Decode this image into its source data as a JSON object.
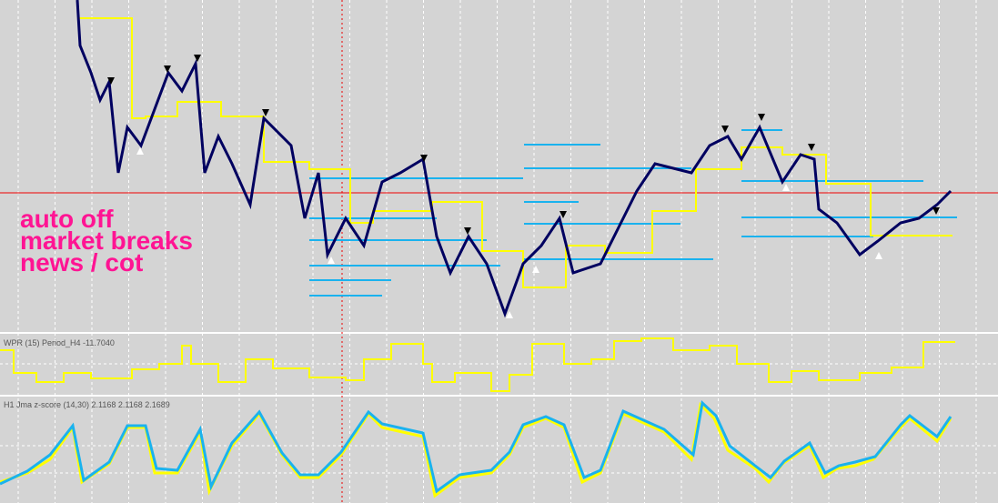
{
  "panel_text": {
    "lines": [
      "auto off",
      "market breaks",
      "news / cot"
    ]
  },
  "indicators": [
    {
      "label": "WPR (15) Period_H4 -11.7040"
    },
    {
      "label": "H1 Jma z-score (14,30) 2.1168 2.1168 2.1689"
    }
  ]
}
